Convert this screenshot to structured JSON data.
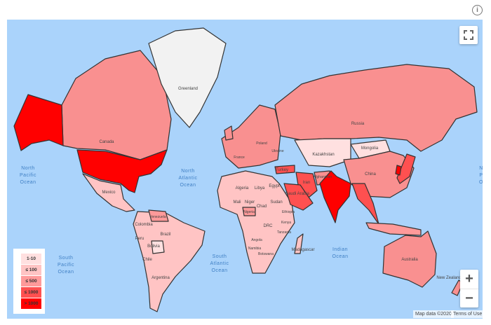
{
  "legend": {
    "items": [
      {
        "label": "1-10",
        "color": "#ffe0e0"
      },
      {
        "label": "≤ 100",
        "color": "#ffc4c4"
      },
      {
        "label": "≤ 500",
        "color": "#ff9a9a"
      },
      {
        "label": "≤ 1000",
        "color": "#ff5050"
      },
      {
        "label": "> 1000",
        "color": "#ff0000"
      }
    ]
  },
  "labels": {
    "greenland": "Greenland",
    "canada": "Canada",
    "russia": "Russia",
    "kazakhstan": "Kazakhstan",
    "mongolia": "Mongolia",
    "china": "China",
    "mexico": "Mexico",
    "colombia": "Colombia",
    "venezuela": "Venezuela",
    "peru": "Peru",
    "brazil": "Brazil",
    "bolivia": "Bolivia",
    "chile": "Chile",
    "argentina": "Argentina",
    "algeria": "Algeria",
    "libya": "Libya",
    "egypt": "Egypt",
    "mali": "Mali",
    "niger": "Niger",
    "chad": "Chad",
    "sudan": "Sudan",
    "nigeria": "Nigeria",
    "ethiopia": "Ethiopia",
    "drc": "DRC",
    "kenya": "Kenya",
    "tanzania": "Tanzania",
    "angola": "Angola",
    "namibia": "Namibia",
    "botswana": "Botswana",
    "madagascar": "Madagascar",
    "turkey": "Turkey",
    "iran": "Iran",
    "saudi_arabia": "Saudi Arabia",
    "afghanistan": "Afghanistan",
    "france": "France",
    "ukraine": "Ukraine",
    "poland": "Poland",
    "australia": "Australia",
    "new_zealand": "New Zealand"
  },
  "oceans": {
    "north_pacific": [
      "North",
      "Pacific",
      "Ocean"
    ],
    "north_atlantic": [
      "North",
      "Atlantic",
      "Ocean"
    ],
    "south_pacific": [
      "South",
      "Pacific",
      "Ocean"
    ],
    "south_atlantic": [
      "South",
      "Atlantic",
      "Ocean"
    ],
    "indian": [
      "Indian",
      "Ocean"
    ],
    "north_pacific_east": [
      "N",
      "P",
      "O"
    ]
  },
  "controls": {
    "zoom_in": "+",
    "zoom_out": "−",
    "info": "i",
    "fullscreen_icon": "fullscreen-icon"
  },
  "attribution": {
    "map_data": "Map data ©2020",
    "terms": "Terms of Use"
  },
  "colors": {
    "ocean": "#aad3fb",
    "no_data": "#f2f2f2"
  }
}
